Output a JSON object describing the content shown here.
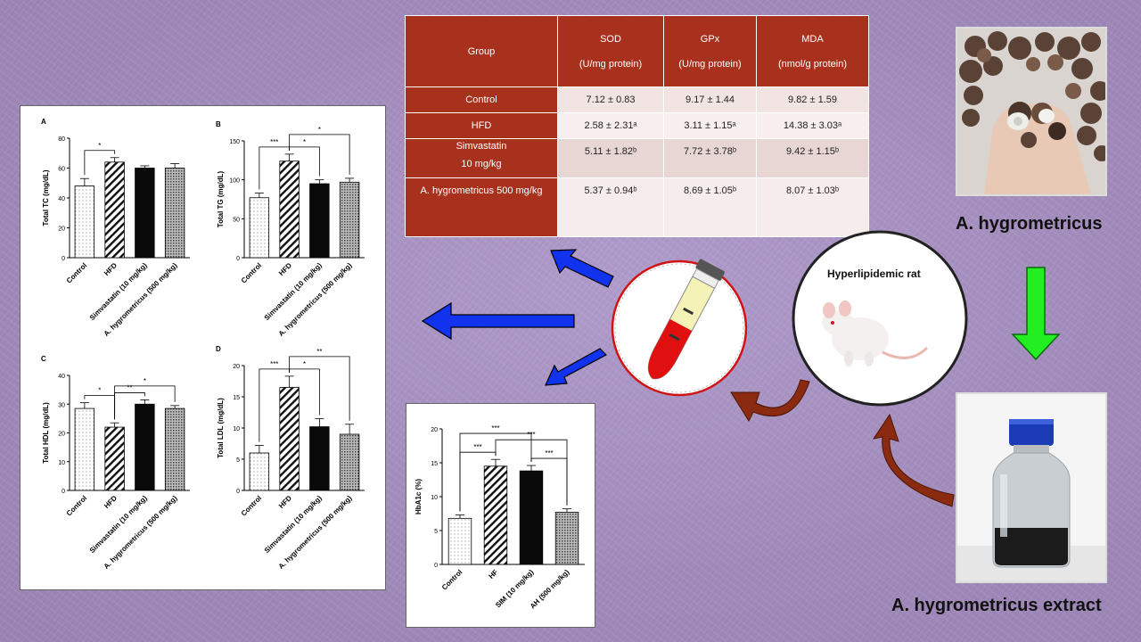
{
  "table": {
    "headers": [
      {
        "name": "Group",
        "unit": ""
      },
      {
        "name": "SOD",
        "unit": "(U/mg protein)"
      },
      {
        "name": "GPx",
        "unit": "(U/mg protein)"
      },
      {
        "name": "MDA",
        "unit": "(nmol/g protein)"
      }
    ],
    "rows": [
      {
        "group": "Control",
        "group2": "",
        "sod": "7.12 ± 0.83",
        "gpx": "9.17 ± 1.44",
        "mda": "9.82 ± 1.59"
      },
      {
        "group": "HFD",
        "group2": "",
        "sod": "2.58 ± 2.31ᵃ",
        "gpx": "3.11 ± 1.15ᵃ",
        "mda": "14.38 ± 3.03ᵃ"
      },
      {
        "group": "Simvastatin",
        "group2": "10 mg/kg",
        "sod": "5.11 ± 1.82ᵇ",
        "gpx": "7.72 ± 3.78ᵇ",
        "mda": "9.42 ± 1.15ᵇ"
      },
      {
        "group": "A. hygrometricus 500 mg/kg",
        "group2": "",
        "sod": "5.37 ± 0.94ᵇ",
        "gpx": "8.69 ± 1.05ᵇ",
        "mda": "8.07 ± 1.03ᵇ"
      }
    ]
  },
  "labels": {
    "species": "A. hygrometricus",
    "extract": "A. hygrometricus extract",
    "rat": "Hyperlipidemic rat"
  },
  "colors": {
    "table_header": "#a8311d",
    "arrow_blue": "#1133ee",
    "arrow_green": "#22ee22",
    "arrow_brown": "#8a2a10"
  },
  "chart_data": [
    {
      "type": "bar",
      "panel": "A",
      "ylabel": "Total TC (mg/dL)",
      "ylim": [
        0,
        80
      ],
      "yticks": [
        0,
        20,
        40,
        60,
        80
      ],
      "categories": [
        "Control",
        "HFD",
        "Simvastatin (10 mg/kg)",
        "A. hygrometricus (500 mg/kg)"
      ],
      "values": [
        48,
        64,
        60,
        60
      ],
      "errors": [
        5,
        3,
        1.5,
        3
      ],
      "significance": [
        {
          "label": "*",
          "from": 0,
          "to": 1,
          "level": 1
        }
      ]
    },
    {
      "type": "bar",
      "panel": "B",
      "ylabel": "Total TG (mg/dL)",
      "ylim": [
        0,
        150
      ],
      "yticks": [
        0,
        50,
        100,
        150
      ],
      "categories": [
        "Control",
        "HFD",
        "Simvastatin (10 mg/kg)",
        "A. hygrometricus (500 mg/kg)"
      ],
      "values": [
        77,
        124,
        95,
        97
      ],
      "errors": [
        6,
        9,
        5,
        5
      ],
      "significance": [
        {
          "label": "***",
          "from": 0,
          "to": 1,
          "level": 1
        },
        {
          "label": "*",
          "from": 1,
          "to": 2,
          "level": 1
        },
        {
          "label": "*",
          "from": 1,
          "to": 3,
          "level": 2
        }
      ]
    },
    {
      "type": "bar",
      "panel": "C",
      "ylabel": "Total HDL (mg/dL)",
      "ylim": [
        0,
        40
      ],
      "yticks": [
        0,
        10,
        20,
        30,
        40
      ],
      "categories": [
        "Control",
        "HFD",
        "Simvastatin (10 mg/kg)",
        "A. hygrometricus (500 mg/kg)"
      ],
      "values": [
        28.5,
        22,
        30,
        28.5
      ],
      "errors": [
        2,
        1.5,
        1.5,
        1
      ],
      "significance": [
        {
          "label": "*",
          "from": 0,
          "to": 1,
          "level": 1
        },
        {
          "label": "**",
          "from": 1,
          "to": 2,
          "level": 1
        },
        {
          "label": "*",
          "from": 1,
          "to": 3,
          "level": 2
        }
      ]
    },
    {
      "type": "bar",
      "panel": "D",
      "ylabel": "Total LDL (mg/dL)",
      "ylim": [
        0,
        20
      ],
      "yticks": [
        0,
        5,
        10,
        15,
        20
      ],
      "categories": [
        "Control",
        "HFD",
        "Simvastatin (10 mg/kg)",
        "A. hygrometricus (500 mg/kg)"
      ],
      "values": [
        6,
        16.5,
        10.2,
        9
      ],
      "errors": [
        1.2,
        1.8,
        1.3,
        1.6
      ],
      "significance": [
        {
          "label": "***",
          "from": 0,
          "to": 1,
          "level": 1
        },
        {
          "label": "*",
          "from": 1,
          "to": 2,
          "level": 1
        },
        {
          "label": "**",
          "from": 1,
          "to": 3,
          "level": 2
        }
      ]
    },
    {
      "type": "bar",
      "panel": "",
      "ylabel": "HbA1c (%)",
      "ylim": [
        0,
        20
      ],
      "yticks": [
        0,
        5,
        10,
        15,
        20
      ],
      "categories": [
        "Control",
        "HF",
        "SIM (10 mg/kg)",
        "AH (500 mg/kg)"
      ],
      "values": [
        6.8,
        14.5,
        13.8,
        7.7
      ],
      "errors": [
        0.5,
        1.0,
        0.8,
        0.5
      ],
      "significance": [
        {
          "label": "***",
          "from": 0,
          "to": 1,
          "level": 1
        },
        {
          "label": "***",
          "from": 0,
          "to": 2,
          "level": 3
        },
        {
          "label": "***",
          "from": 1,
          "to": 3,
          "level": 2
        },
        {
          "label": "***",
          "from": 2,
          "to": 3,
          "level": 1
        }
      ]
    }
  ]
}
